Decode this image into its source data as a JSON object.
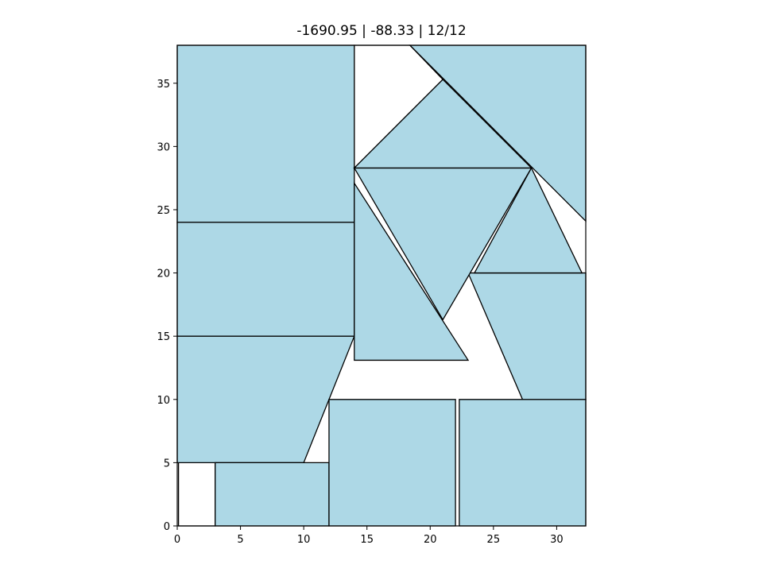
{
  "chart_data": {
    "type": "polygon-packing",
    "title": "-1690.95 | -88.33 | 12/12",
    "xlim": [
      0,
      32.3
    ],
    "ylim": [
      0,
      38
    ],
    "xticks": [
      0,
      5,
      10,
      15,
      20,
      25,
      30
    ],
    "yticks": [
      0,
      5,
      10,
      15,
      20,
      25,
      30,
      35
    ],
    "grid": false,
    "fill_color": "#add8e6",
    "edge_color": "#000000",
    "container_outline": [
      [
        0,
        0
      ],
      [
        32.3,
        0
      ],
      [
        32.3,
        38
      ],
      [
        0,
        38
      ]
    ],
    "holes": [
      [
        [
          0.1,
          0
        ],
        [
          3,
          0
        ],
        [
          3,
          5
        ],
        [
          0.1,
          5
        ]
      ],
      [
        [
          14,
          38
        ],
        [
          18.4,
          38
        ],
        [
          21,
          35.3
        ],
        [
          14,
          28.3
        ]
      ]
    ],
    "pieces": [
      [
        [
          0,
          24
        ],
        [
          14,
          24
        ],
        [
          14,
          38
        ],
        [
          0,
          38
        ]
      ],
      [
        [
          0,
          15
        ],
        [
          14,
          15
        ],
        [
          14,
          24
        ],
        [
          0,
          24
        ]
      ],
      [
        [
          0,
          5
        ],
        [
          10,
          5
        ],
        [
          14,
          15
        ],
        [
          0,
          15
        ]
      ],
      [
        [
          3,
          0
        ],
        [
          12,
          0
        ],
        [
          12,
          5
        ],
        [
          3,
          5
        ]
      ],
      [
        [
          12,
          0
        ],
        [
          22,
          0
        ],
        [
          22,
          10
        ],
        [
          12,
          10
        ]
      ],
      [
        [
          22.3,
          0
        ],
        [
          32.3,
          0
        ],
        [
          32.3,
          10
        ],
        [
          22.3,
          10
        ]
      ],
      [
        [
          27.3,
          10
        ],
        [
          32.3,
          10
        ],
        [
          32.3,
          20
        ],
        [
          23,
          20
        ]
      ],
      [
        [
          23.5,
          20
        ],
        [
          28,
          28.3
        ],
        [
          32,
          20
        ]
      ],
      [
        [
          14,
          28.3
        ],
        [
          28,
          28.3
        ],
        [
          21,
          16.3
        ]
      ],
      [
        [
          14,
          13.1
        ],
        [
          23,
          13.1
        ],
        [
          14,
          27.1
        ]
      ],
      [
        [
          14,
          28.3
        ],
        [
          28,
          28.3
        ],
        [
          21,
          35.3
        ]
      ],
      [
        [
          18.4,
          38
        ],
        [
          32.3,
          38
        ],
        [
          32.3,
          24.1
        ]
      ]
    ]
  }
}
